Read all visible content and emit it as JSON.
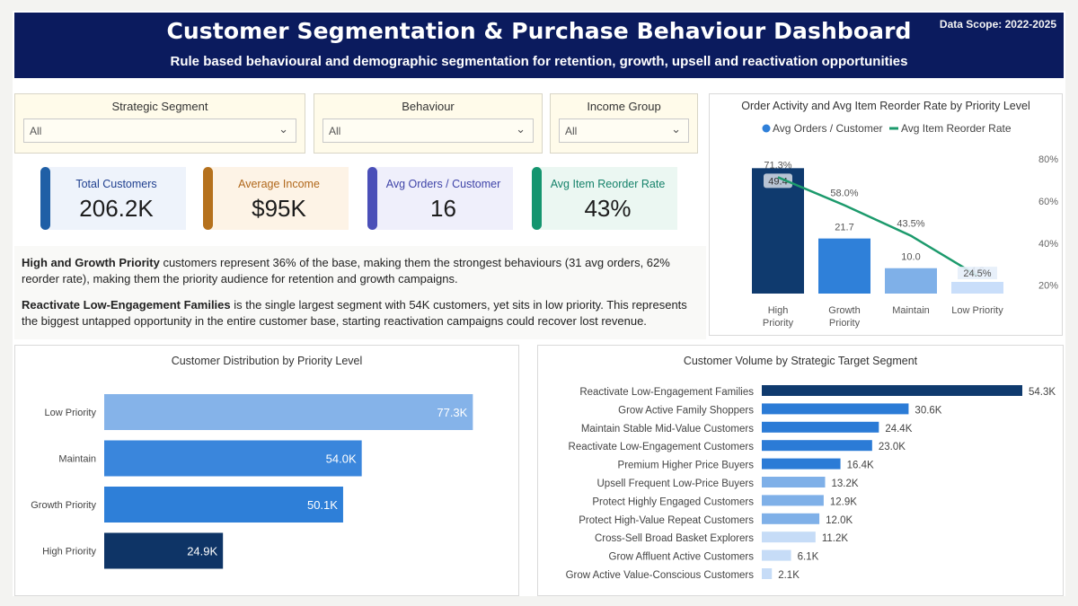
{
  "header": {
    "title": "Customer Segmentation & Purchase Behaviour Dashboard",
    "subtitle": "Rule based behavioural and demographic segmentation for retention, growth, upsell and reactivation opportunities",
    "scope": "Data Scope: 2022-2025"
  },
  "filters": [
    {
      "label": "Strategic Segment",
      "value": "All"
    },
    {
      "label": "Behaviour",
      "value": "All"
    },
    {
      "label": "Income Group",
      "value": "All"
    }
  ],
  "kpis": [
    {
      "label": "Total Customers",
      "value": "206.2K",
      "accent": "#1f5fa6",
      "label_color": "#1f3f8f"
    },
    {
      "label": "Average Income",
      "value": "$95K",
      "accent": "#b5711d",
      "label_color": "#b0671a"
    },
    {
      "label": "Avg Orders / Customer",
      "value": "16",
      "accent": "#4a4fb8",
      "label_color": "#3f44a8"
    },
    {
      "label": "Avg Item Reorder Rate",
      "value": "43%",
      "accent": "#14956f",
      "label_color": "#15826a"
    }
  ],
  "insights": {
    "p1_bold": "High and Growth Priority",
    "p1_text": " customers represent 36% of the base, making them the strongest behaviours (31 avg orders, 62% reorder rate), making them the priority audience for retention and growth campaigns.",
    "p2_bold": "Reactivate Low-Engagement Families",
    "p2_text": " is the single largest segment with 54K customers, yet sits in low priority. This represents the biggest untapped opportunity in the entire customer base, starting reactivation campaigns could recover lost revenue."
  },
  "chart_data": [
    {
      "type": "bar",
      "title": "Order Activity and Avg Item Reorder Rate by Priority Level",
      "categories": [
        "High Priority",
        "Growth Priority",
        "Maintain",
        "Low Priority"
      ],
      "series": [
        {
          "name": "Avg Orders / Customer",
          "type": "bar",
          "values": [
            49.4,
            21.7,
            10.0,
            4.6
          ],
          "labels": [
            "49.4",
            "21.7",
            "10.0",
            "4.6"
          ]
        },
        {
          "name": "Avg Item Reorder Rate",
          "type": "line",
          "values": [
            71.3,
            58.0,
            43.5,
            24.5
          ],
          "labels": [
            "71.3%",
            "58.0%",
            "43.5%",
            "24.5%"
          ]
        }
      ],
      "y2_ticks": [
        "80%",
        "60%",
        "40%",
        "20%"
      ],
      "y2lim": [
        16,
        86
      ],
      "ylim": [
        0,
        58
      ],
      "bar_colors": [
        "#0f3a6e",
        "#2f80d9",
        "#7fb0e8",
        "#c9defa"
      ],
      "line_color": "#1c9a6c",
      "legend": "top"
    },
    {
      "type": "bar",
      "orientation": "horizontal",
      "title": "Customer Distribution by Priority Level",
      "categories": [
        "Low Priority",
        "Maintain",
        "Growth Priority",
        "High Priority"
      ],
      "values": [
        77.3,
        54.0,
        50.1,
        24.9
      ],
      "labels": [
        "77.3K",
        "54.0K",
        "50.1K",
        "24.9K"
      ],
      "xlim": [
        0,
        81
      ],
      "colors": [
        "#85b3e9",
        "#3a86dc",
        "#2e7fd8",
        "#0e3466"
      ]
    },
    {
      "type": "bar",
      "orientation": "horizontal",
      "title": "Customer Volume by Strategic Target Segment",
      "categories": [
        "Reactivate Low-Engagement Families",
        "Grow Active Family Shoppers",
        "Maintain Stable Mid-Value Customers",
        "Reactivate Low-Engagement Customers",
        "Premium Higher Price Buyers",
        "Upsell Frequent Low-Price Buyers",
        "Protect Highly Engaged Customers",
        "Protect High-Value Repeat Customers",
        "Cross-Sell Broad Basket Explorers",
        "Grow Affluent Active Customers",
        "Grow Active Value-Conscious Customers"
      ],
      "values": [
        54.3,
        30.6,
        24.4,
        23.0,
        16.4,
        13.2,
        12.9,
        12.0,
        11.2,
        6.1,
        2.1
      ],
      "labels": [
        "54.3K",
        "30.6K",
        "24.4K",
        "23.0K",
        "16.4K",
        "13.2K",
        "12.9K",
        "12.0K",
        "11.2K",
        "6.1K",
        "2.1K"
      ],
      "xlim": [
        0,
        54.3
      ],
      "colors": [
        "#0f3a6e",
        "#2b7bd6",
        "#2b7bd6",
        "#2b7bd6",
        "#2b7bd6",
        "#7fb0e8",
        "#7fb0e8",
        "#7fb0e8",
        "#c6dcf7",
        "#c6dcf7",
        "#c6dcf7"
      ]
    }
  ]
}
